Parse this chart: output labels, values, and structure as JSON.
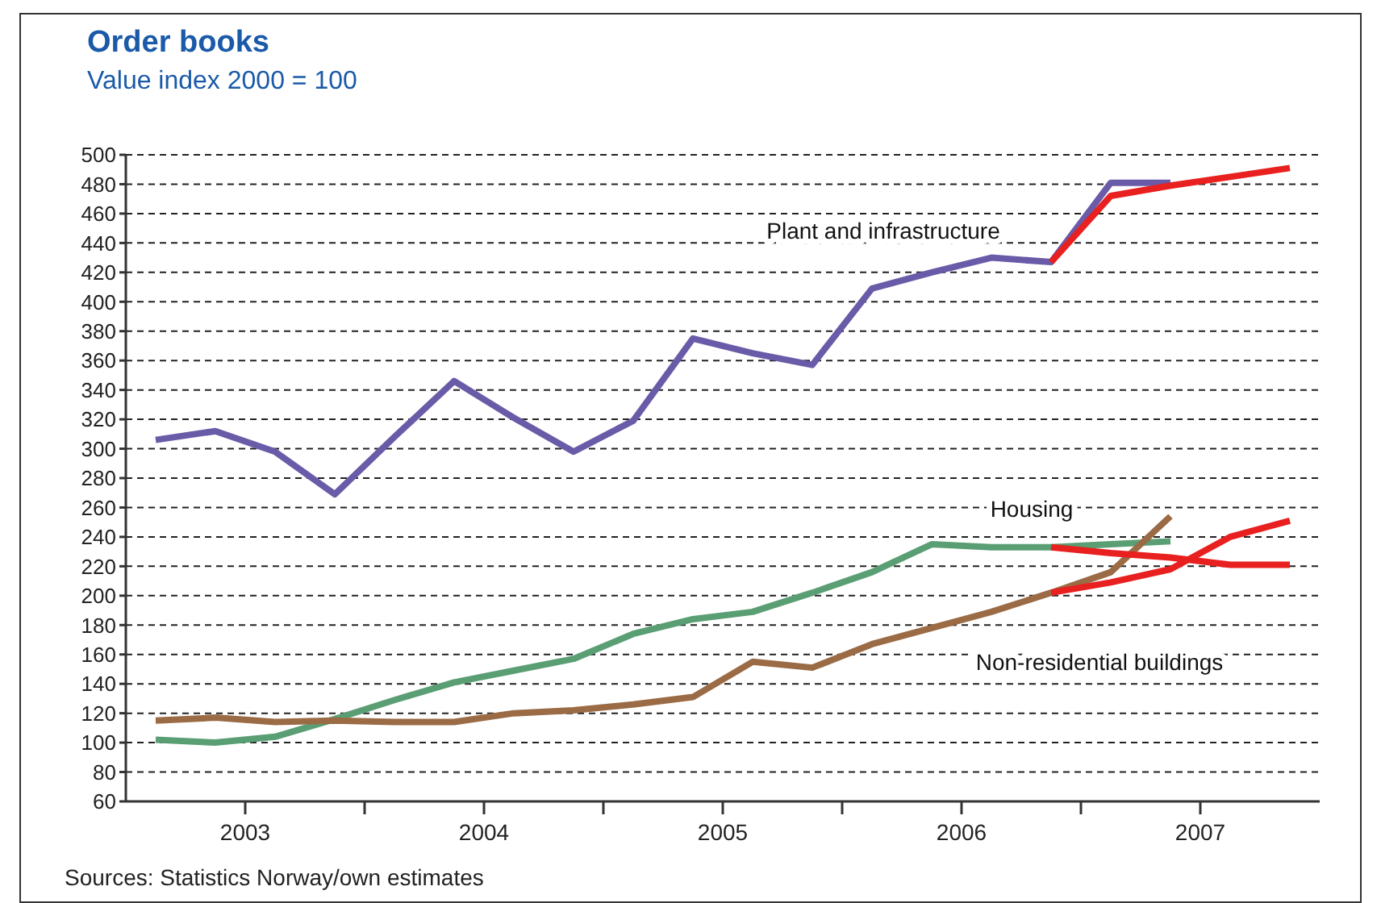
{
  "chart_data": {
    "type": "line",
    "title": "Order books",
    "subtitle": "Value index 2000 = 100",
    "annotations": [
      "Sources: Statistics Norway/own estimates"
    ],
    "x": [
      2002.625,
      2002.875,
      2003.125,
      2003.375,
      2003.625,
      2003.875,
      2004.125,
      2004.375,
      2004.625,
      2004.875,
      2005.125,
      2005.375,
      2005.625,
      2005.875,
      2006.125,
      2006.375,
      2006.625,
      2006.875
    ],
    "series": [
      {
        "name": "Plant and infrastructure",
        "color": "#6a5ba8",
        "values": [
          306,
          312,
          298,
          269,
          308,
          346,
          321,
          298,
          319,
          375,
          365,
          357,
          409,
          420,
          430,
          427,
          481,
          481
        ]
      },
      {
        "name": "Housing",
        "color": "#5a9e73",
        "values": [
          102,
          100,
          104,
          116,
          129,
          141,
          149,
          157,
          174,
          184,
          189,
          202,
          216,
          235,
          233,
          233,
          235,
          237
        ]
      },
      {
        "name": "Non-residential buildings",
        "color": "#9a6b45",
        "values": [
          115,
          117,
          114,
          115,
          114,
          114,
          120,
          122,
          126,
          131,
          155,
          151,
          167,
          178,
          189,
          202,
          216,
          254
        ]
      },
      {
        "type": "line",
        "color": "#e8201f",
        "x": [
          2006.375,
          2006.625,
          2006.875,
          2007.125,
          2007.375
        ],
        "values": [
          427,
          472,
          479,
          485,
          491
        ]
      },
      {
        "type": "line",
        "color": "#e8201f",
        "x": [
          2006.375,
          2006.625,
          2006.875,
          2007.125,
          2007.375
        ],
        "values": [
          233,
          229,
          226,
          221,
          221
        ]
      },
      {
        "type": "line",
        "color": "#e8201f",
        "x": [
          2006.375,
          2006.625,
          2006.875,
          2007.125,
          2007.375
        ],
        "values": [
          202,
          209,
          218,
          240,
          251
        ]
      }
    ],
    "xlim": [
      2002.5,
      2007.5
    ],
    "xticks": [
      2003,
      {
        "value": 2003.5,
        "label": null
      },
      2004,
      {
        "value": 2004.5,
        "label": null
      },
      2005,
      {
        "value": 2005.5,
        "label": null
      },
      2006,
      {
        "value": 2006.5,
        "label": null
      },
      2007
    ],
    "ylim": [
      60,
      500
    ],
    "yticks": [
      60,
      80,
      100,
      120,
      140,
      160,
      180,
      200,
      220,
      240,
      260,
      280,
      300,
      320,
      340,
      360,
      380,
      400,
      420,
      440,
      460,
      480,
      500
    ],
    "grid": "y",
    "legend": false,
    "marker": "none",
    "line_style": "solid"
  }
}
